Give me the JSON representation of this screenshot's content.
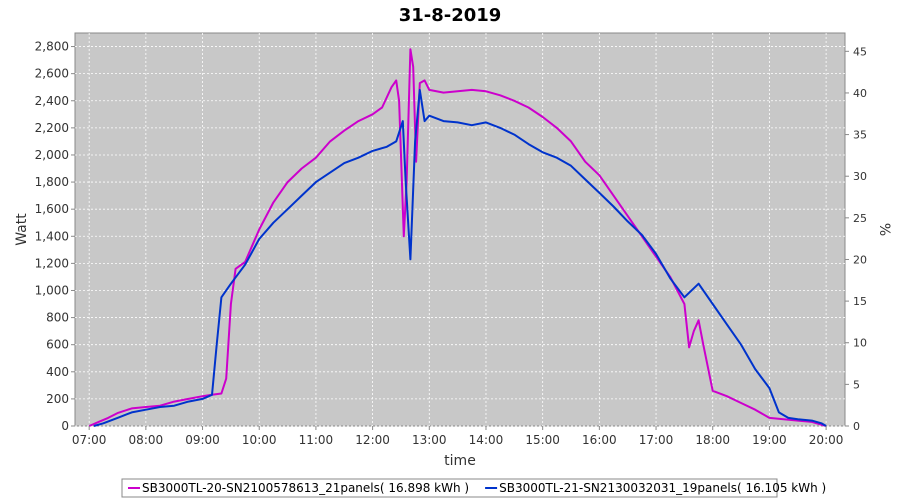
{
  "chart_data": {
    "type": "line",
    "title": "31-8-2019",
    "xlabel": "time",
    "ylabel": "Watt",
    "y2label": "%",
    "xlim": [
      "06:45",
      "20:20"
    ],
    "ylim": [
      0,
      2900
    ],
    "y2lim": [
      0,
      47.2
    ],
    "x_ticks": [
      "07:00",
      "08:00",
      "09:00",
      "10:00",
      "11:00",
      "12:00",
      "13:00",
      "14:00",
      "15:00",
      "16:00",
      "17:00",
      "18:00",
      "19:00",
      "20:00"
    ],
    "y_ticks": [
      "0",
      "200",
      "400",
      "600",
      "800",
      "1,000",
      "1,200",
      "1,400",
      "1,600",
      "1,800",
      "2,000",
      "2,200",
      "2,400",
      "2,600",
      "2,800"
    ],
    "y2_ticks": [
      "0",
      "5",
      "10",
      "15",
      "20",
      "25",
      "30",
      "35",
      "40",
      "45"
    ],
    "grid": true,
    "legend_position": "bottom",
    "series": [
      {
        "name": "SB3000TL-20-SN2100578613_21panels( 16.898 kWh )",
        "color": "#cc00cc",
        "points": [
          [
            "07:00",
            0
          ],
          [
            "07:10",
            30
          ],
          [
            "07:20",
            60
          ],
          [
            "07:30",
            95
          ],
          [
            "07:45",
            130
          ],
          [
            "08:00",
            140
          ],
          [
            "08:15",
            150
          ],
          [
            "08:30",
            180
          ],
          [
            "08:45",
            200
          ],
          [
            "09:00",
            220
          ],
          [
            "09:10",
            230
          ],
          [
            "09:20",
            240
          ],
          [
            "09:25",
            350
          ],
          [
            "09:30",
            900
          ],
          [
            "09:35",
            1160
          ],
          [
            "09:45",
            1210
          ],
          [
            "10:00",
            1450
          ],
          [
            "10:15",
            1650
          ],
          [
            "10:30",
            1800
          ],
          [
            "10:45",
            1900
          ],
          [
            "11:00",
            1980
          ],
          [
            "11:15",
            2100
          ],
          [
            "11:30",
            2180
          ],
          [
            "11:45",
            2250
          ],
          [
            "12:00",
            2300
          ],
          [
            "12:10",
            2350
          ],
          [
            "12:20",
            2500
          ],
          [
            "12:25",
            2550
          ],
          [
            "12:28",
            2400
          ],
          [
            "12:33",
            1400
          ],
          [
            "12:36",
            1800
          ],
          [
            "12:40",
            2780
          ],
          [
            "12:43",
            2650
          ],
          [
            "12:46",
            1950
          ],
          [
            "12:50",
            2530
          ],
          [
            "12:55",
            2550
          ],
          [
            "13:00",
            2480
          ],
          [
            "13:15",
            2460
          ],
          [
            "13:30",
            2470
          ],
          [
            "13:45",
            2480
          ],
          [
            "14:00",
            2470
          ],
          [
            "14:15",
            2440
          ],
          [
            "14:30",
            2400
          ],
          [
            "14:45",
            2350
          ],
          [
            "15:00",
            2280
          ],
          [
            "15:15",
            2200
          ],
          [
            "15:30",
            2100
          ],
          [
            "15:45",
            1950
          ],
          [
            "16:00",
            1850
          ],
          [
            "16:15",
            1700
          ],
          [
            "16:30",
            1550
          ],
          [
            "16:45",
            1400
          ],
          [
            "17:00",
            1250
          ],
          [
            "17:15",
            1100
          ],
          [
            "17:30",
            900
          ],
          [
            "17:35",
            580
          ],
          [
            "17:40",
            700
          ],
          [
            "17:45",
            780
          ],
          [
            "17:50",
            600
          ],
          [
            "18:00",
            260
          ],
          [
            "18:15",
            220
          ],
          [
            "18:30",
            170
          ],
          [
            "18:45",
            120
          ],
          [
            "19:00",
            60
          ],
          [
            "19:15",
            50
          ],
          [
            "19:30",
            40
          ],
          [
            "19:45",
            30
          ],
          [
            "20:00",
            0
          ]
        ]
      },
      {
        "name": "SB3000TL-21-SN2130032031_19panels( 16.105 kWh )",
        "color": "#0033cc",
        "points": [
          [
            "07:05",
            0
          ],
          [
            "07:15",
            20
          ],
          [
            "07:30",
            60
          ],
          [
            "07:45",
            100
          ],
          [
            "08:00",
            120
          ],
          [
            "08:15",
            140
          ],
          [
            "08:30",
            150
          ],
          [
            "08:45",
            180
          ],
          [
            "09:00",
            200
          ],
          [
            "09:10",
            230
          ],
          [
            "09:15",
            600
          ],
          [
            "09:20",
            950
          ],
          [
            "09:30",
            1050
          ],
          [
            "09:45",
            1190
          ],
          [
            "10:00",
            1380
          ],
          [
            "10:15",
            1500
          ],
          [
            "10:30",
            1600
          ],
          [
            "10:45",
            1700
          ],
          [
            "11:00",
            1800
          ],
          [
            "11:15",
            1870
          ],
          [
            "11:30",
            1940
          ],
          [
            "11:45",
            1980
          ],
          [
            "12:00",
            2030
          ],
          [
            "12:15",
            2060
          ],
          [
            "12:25",
            2100
          ],
          [
            "12:32",
            2250
          ],
          [
            "12:35",
            1800
          ],
          [
            "12:40",
            1230
          ],
          [
            "12:45",
            2100
          ],
          [
            "12:50",
            2480
          ],
          [
            "12:55",
            2250
          ],
          [
            "13:00",
            2290
          ],
          [
            "13:15",
            2250
          ],
          [
            "13:30",
            2240
          ],
          [
            "13:45",
            2220
          ],
          [
            "14:00",
            2240
          ],
          [
            "14:15",
            2200
          ],
          [
            "14:30",
            2150
          ],
          [
            "14:45",
            2080
          ],
          [
            "15:00",
            2020
          ],
          [
            "15:15",
            1980
          ],
          [
            "15:30",
            1920
          ],
          [
            "15:45",
            1820
          ],
          [
            "16:00",
            1720
          ],
          [
            "16:15",
            1620
          ],
          [
            "16:30",
            1510
          ],
          [
            "16:45",
            1410
          ],
          [
            "17:00",
            1270
          ],
          [
            "17:15",
            1090
          ],
          [
            "17:30",
            950
          ],
          [
            "17:45",
            1050
          ],
          [
            "18:00",
            900
          ],
          [
            "18:15",
            750
          ],
          [
            "18:30",
            600
          ],
          [
            "18:45",
            420
          ],
          [
            "19:00",
            280
          ],
          [
            "19:10",
            100
          ],
          [
            "19:20",
            60
          ],
          [
            "19:30",
            50
          ],
          [
            "19:45",
            40
          ],
          [
            "19:55",
            20
          ],
          [
            "20:00",
            0
          ]
        ]
      }
    ]
  }
}
